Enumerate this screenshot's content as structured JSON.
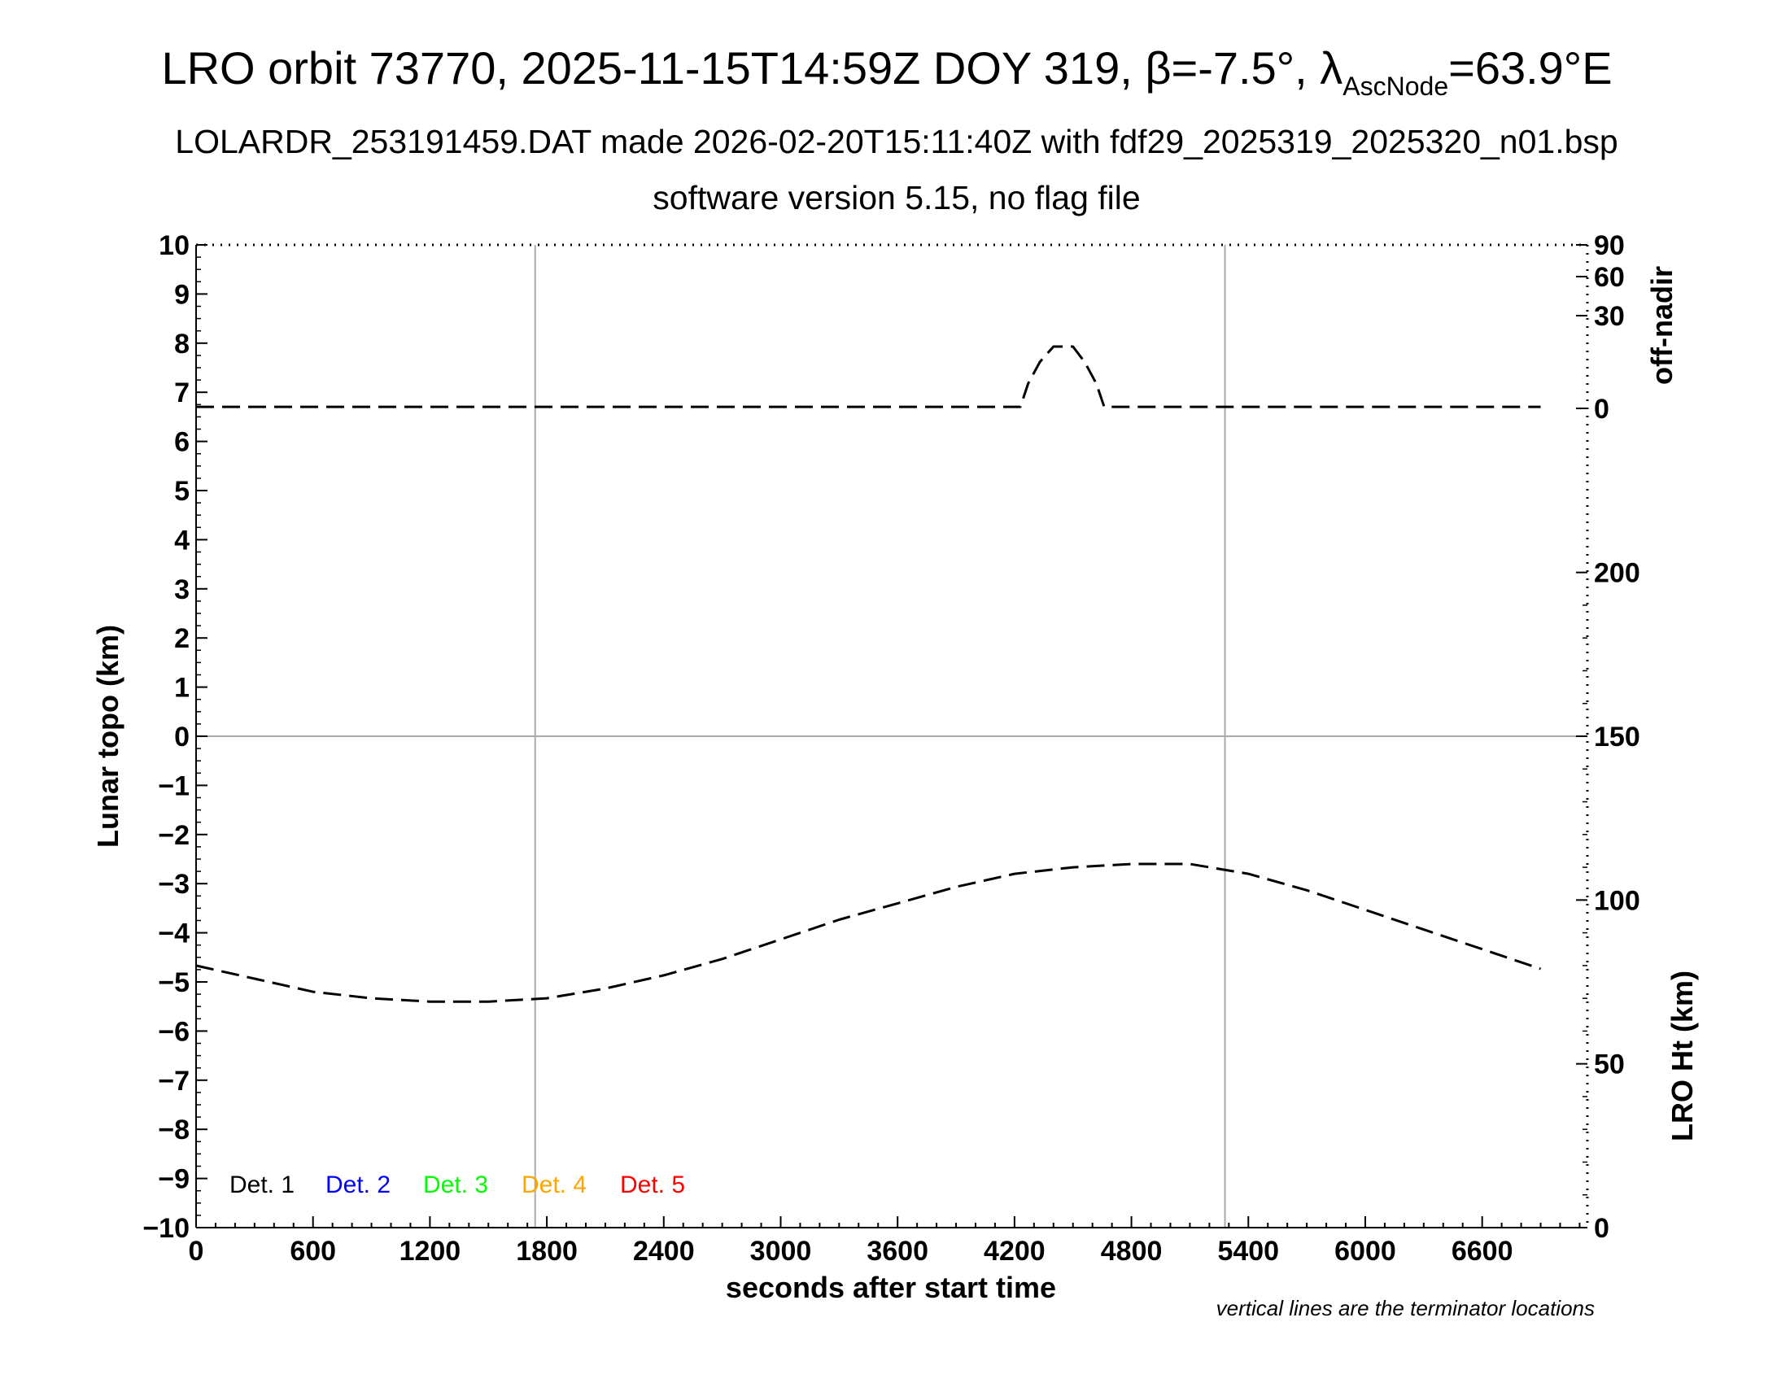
{
  "header": {
    "title_main": "LRO orbit 73770, 2025-11-15T14:59Z DOY 319, β=-7.5°, λ",
    "title_sub": "AscNode",
    "title_end": "=63.9°E",
    "subtitle_line1": "LOLARDR_253191459.DAT made 2026-02-20T15:11:40Z with fdf29_2025319_2025320_n01.bsp",
    "subtitle_line2": "software version 5.15, no flag file"
  },
  "footnote": "vertical lines are the terminator locations",
  "chart_data": {
    "type": "line",
    "xlabel": "seconds after start time",
    "xlim": [
      0,
      7140
    ],
    "x_ticks": [
      0,
      600,
      1200,
      1800,
      2400,
      3000,
      3600,
      4200,
      4800,
      5400,
      6000,
      6600
    ],
    "ylabel_left": "Lunar topo (km)",
    "ylim_left": [
      -10,
      10
    ],
    "y_ticks_left": [
      10,
      9,
      8,
      7,
      6,
      5,
      4,
      3,
      2,
      1,
      0,
      -1,
      -2,
      -3,
      -4,
      -5,
      -6,
      -7,
      -8,
      -9,
      -10
    ],
    "y_tick_labels_left": [
      "10",
      "9",
      "8",
      "7",
      "6",
      "5",
      "4",
      "3",
      "2",
      "1",
      "0",
      "−1",
      "−2",
      "−3",
      "−4",
      "−5",
      "−6",
      "−7",
      "−8",
      "−9",
      "−10"
    ],
    "ylabel_right_upper": "off-nadir",
    "right_upper_ticks": [
      90,
      60,
      30,
      0
    ],
    "ylabel_right_lower": "LRO Ht (km)",
    "ylim_right_lower": [
      0,
      300
    ],
    "right_lower_ticks": [
      200,
      150,
      100,
      50,
      0
    ],
    "terminator_lines_x": [
      1740,
      5280
    ],
    "zero_line_y": 0,
    "grid": "terminator lines and zero line only",
    "legend_position": "bottom-left",
    "legend": [
      {
        "label": "Det. 1",
        "color": "#000000"
      },
      {
        "label": "Det. 2",
        "color": "#0000ff"
      },
      {
        "label": "Det. 3",
        "color": "#00ff00"
      },
      {
        "label": "Det. 4",
        "color": "#ffa500"
      },
      {
        "label": "Det. 5",
        "color": "#ff0000"
      }
    ],
    "series": [
      {
        "axis": "right_upper",
        "units": "degrees off-nadir",
        "style": "dashed",
        "color": "#000000",
        "x": [
          0,
          600,
          1200,
          1800,
          2400,
          3000,
          3600,
          4100,
          4230,
          4270,
          4330,
          4400,
          4500,
          4560,
          4620,
          4660,
          4700,
          5400,
          6000,
          6600,
          6900
        ],
        "y": [
          0.5,
          0.5,
          0.5,
          0.5,
          0.5,
          0.5,
          0.5,
          0.5,
          0.5,
          8,
          15,
          20,
          20,
          15,
          8,
          0.5,
          0.5,
          0.5,
          0.5,
          0.5,
          0.5
        ]
      },
      {
        "axis": "right_lower",
        "units": "km",
        "style": "dashed",
        "color": "#000000",
        "x": [
          0,
          300,
          600,
          900,
          1200,
          1500,
          1800,
          2100,
          2400,
          2700,
          3000,
          3300,
          3600,
          3900,
          4200,
          4500,
          4800,
          5100,
          5400,
          5700,
          6000,
          6300,
          6600,
          6900
        ],
        "y": [
          80,
          76,
          72,
          70,
          69,
          69,
          70,
          73,
          77,
          82,
          88,
          94,
          99,
          104,
          108,
          110,
          111,
          111,
          108,
          103,
          97,
          91,
          85,
          79
        ]
      }
    ]
  }
}
